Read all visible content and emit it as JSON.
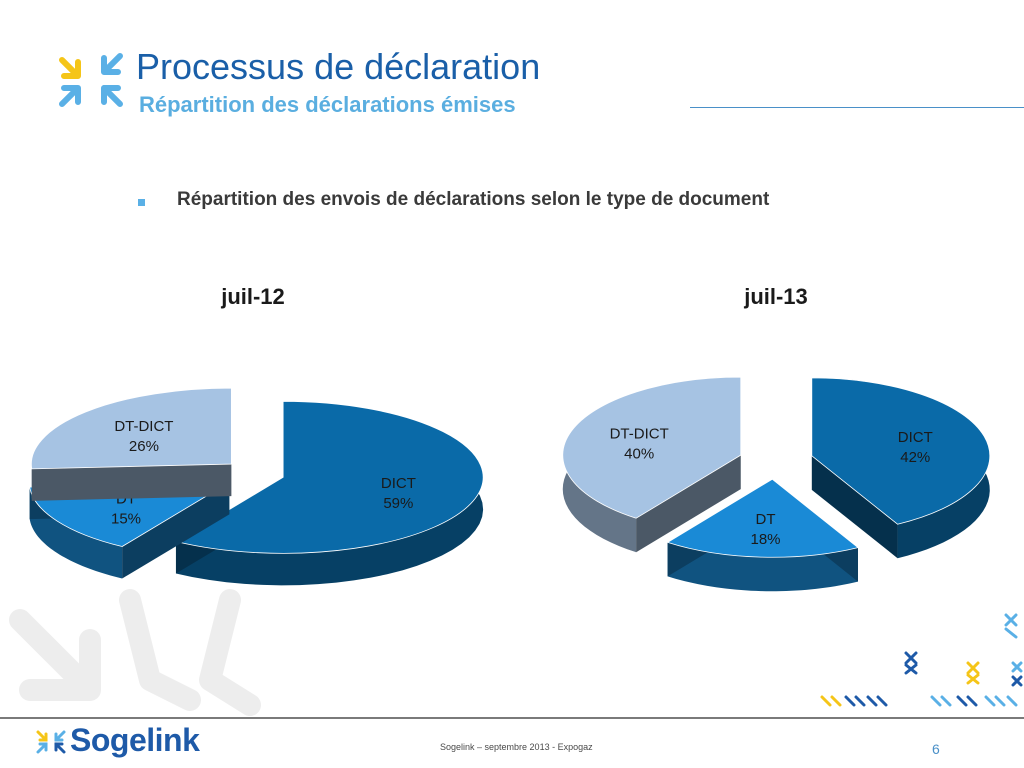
{
  "header": {
    "title": "Processus de déclaration",
    "subtitle": "Répartition des déclarations émises"
  },
  "bullet": "Répartition des envois de déclarations selon le type de document",
  "chart_data": [
    {
      "type": "pie",
      "title": "juil-12",
      "categories": [
        "DICT",
        "DT",
        "DT-DICT"
      ],
      "values": [
        59,
        15,
        26
      ],
      "labels": [
        {
          "name": "DICT",
          "value": "59%"
        },
        {
          "name": "DT",
          "value": "15%"
        },
        {
          "name": "DT-DICT",
          "value": "26%"
        }
      ],
      "colors": [
        "#0a6aa8",
        "#1a8ad6",
        "#a6c3e3"
      ]
    },
    {
      "type": "pie",
      "title": "juil-13",
      "categories": [
        "DICT",
        "DT",
        "DT-DICT"
      ],
      "values": [
        42,
        18,
        40
      ],
      "labels": [
        {
          "name": "DICT",
          "value": "42%"
        },
        {
          "name": "DT",
          "value": "18%"
        },
        {
          "name": "DT-DICT",
          "value": "40%"
        }
      ],
      "colors": [
        "#0a6aa8",
        "#1a8ad6",
        "#a6c3e3"
      ]
    }
  ],
  "footer": {
    "brand": "Sogelink",
    "text": "Sogelink – septembre 2013 - Expogaz",
    "page_number": "6"
  }
}
